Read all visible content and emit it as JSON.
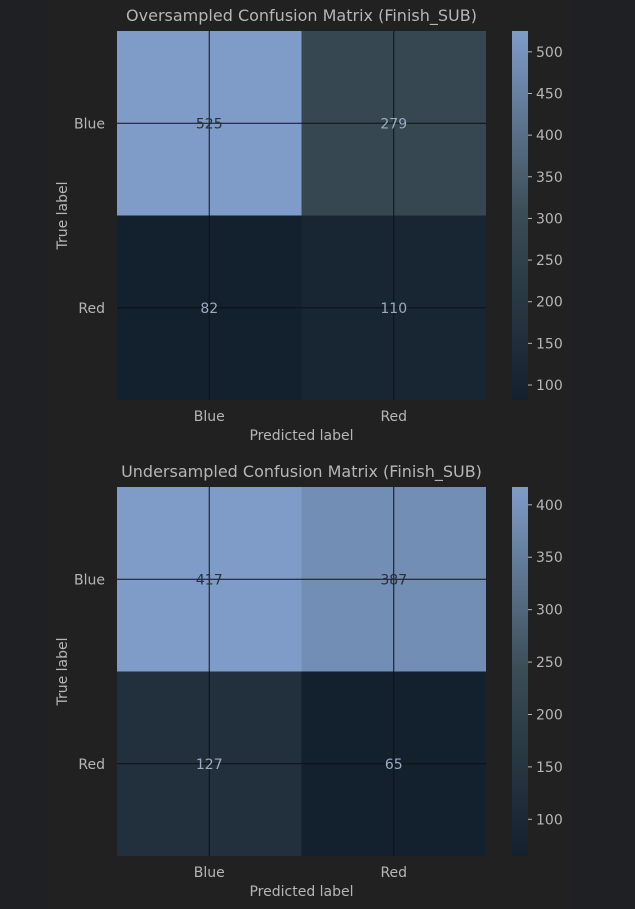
{
  "chart_data": [
    {
      "type": "heatmap",
      "title": "Oversampled Confusion Matrix (Finish_SUB)",
      "xlabel": "Predicted label",
      "ylabel": "True label",
      "x_categories": [
        "Blue",
        "Red"
      ],
      "y_categories": [
        "Blue",
        "Red"
      ],
      "values": [
        [
          525,
          279
        ],
        [
          82,
          110
        ]
      ],
      "colorbar": {
        "min": 82,
        "max": 525,
        "ticks": [
          100,
          150,
          200,
          250,
          300,
          350,
          400,
          450,
          500
        ]
      },
      "grid": true
    },
    {
      "type": "heatmap",
      "title": "Undersampled Confusion Matrix (Finish_SUB)",
      "xlabel": "Predicted label",
      "ylabel": "True label",
      "x_categories": [
        "Blue",
        "Red"
      ],
      "y_categories": [
        "Blue",
        "Red"
      ],
      "values": [
        [
          417,
          387
        ],
        [
          127,
          65
        ]
      ],
      "colorbar": {
        "min": 65,
        "max": 417,
        "ticks": [
          100,
          150,
          200,
          250,
          300,
          350,
          400
        ]
      },
      "grid": true
    }
  ],
  "colors": {
    "low": "#13202e",
    "mid": "#3a4c55",
    "high": "#7f9cc8",
    "text_on_light": "#2a2f3a",
    "text_on_dark": "#9aabc2",
    "label": "#b6b6b6",
    "grid": "#111111"
  }
}
